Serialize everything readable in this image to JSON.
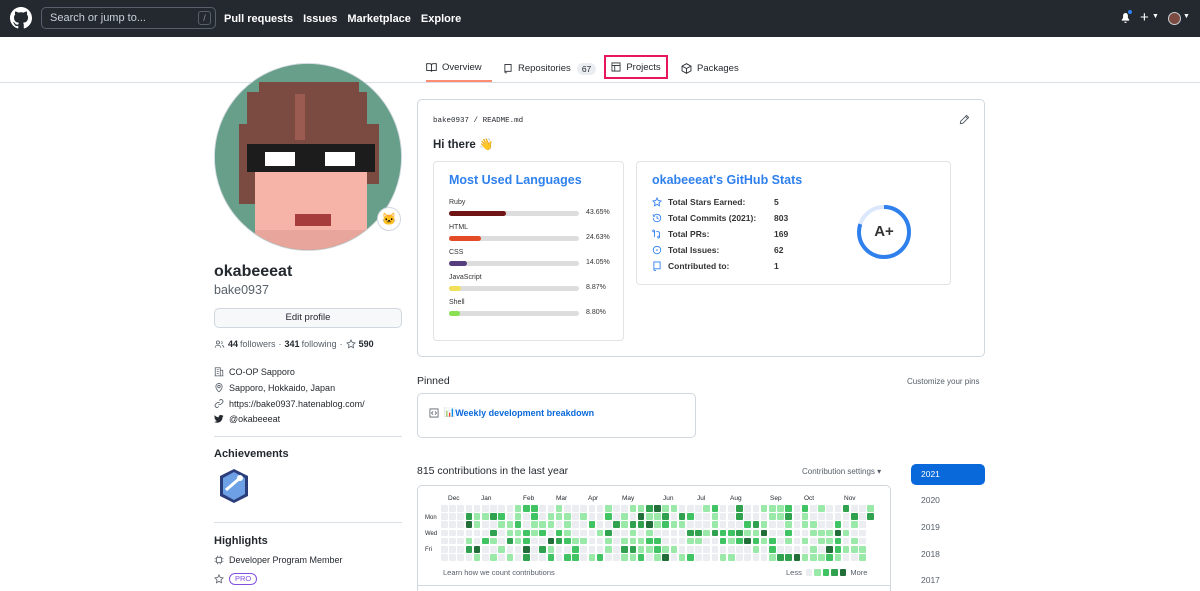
{
  "header": {
    "search_placeholder": "Search or jump to...",
    "slash_hint": "/",
    "nav": [
      "Pull requests",
      "Issues",
      "Marketplace",
      "Explore"
    ],
    "plus_label": "+"
  },
  "tabs": {
    "overview": "Overview",
    "repositories": "Repositories",
    "repositories_count": "67",
    "projects": "Projects",
    "packages": "Packages"
  },
  "profile": {
    "name": "okabeeeat",
    "login": "bake0937",
    "edit_label": "Edit profile",
    "followers_count": "44",
    "followers_label": "followers",
    "following_count": "341",
    "following_label": "following",
    "stars_count": "590",
    "company": "CO-OP Sapporo",
    "location": "Sapporo, Hokkaido, Japan",
    "website": "https://bake0937.hatenablog.com/",
    "twitter": "@okabeeeat",
    "achievements_title": "Achievements",
    "highlights_title": "Highlights",
    "highlight_1": "Developer Program Member",
    "pro_badge": "PRO"
  },
  "readme": {
    "path_user": "bake0937",
    "path_sep": "/",
    "path_file": "README.md",
    "greeting": "Hi there 👋",
    "languages_title": "Most Used Languages",
    "languages": [
      {
        "name": "Ruby",
        "percent": 43.65,
        "label": "43.65%",
        "color": "#701516"
      },
      {
        "name": "HTML",
        "percent": 24.63,
        "label": "24.63%",
        "color": "#e34c26"
      },
      {
        "name": "CSS",
        "percent": 14.05,
        "label": "14.05%",
        "color": "#563d7c"
      },
      {
        "name": "JavaScript",
        "percent": 8.87,
        "label": "8.87%",
        "color": "#f1e05a"
      },
      {
        "name": "Shell",
        "percent": 8.8,
        "label": "8.80%",
        "color": "#89e051"
      }
    ],
    "stats_title": "okabeeeat's GitHub Stats",
    "stats": [
      {
        "label": "Total Stars Earned:",
        "value": "5",
        "icon": "star-icon"
      },
      {
        "label": "Total Commits (2021):",
        "value": "803",
        "icon": "history-icon"
      },
      {
        "label": "Total PRs:",
        "value": "169",
        "icon": "pr-icon"
      },
      {
        "label": "Total Issues:",
        "value": "62",
        "icon": "issue-icon"
      },
      {
        "label": "Contributed to:",
        "value": "1",
        "icon": "repo-icon"
      }
    ],
    "grade": "A+",
    "grade_fraction": 0.8
  },
  "pinned": {
    "title": "Pinned",
    "customize": "Customize your pins",
    "item_emoji": "📊",
    "item_title": "Weekly development breakdown"
  },
  "contributions": {
    "title": "815 contributions in the last year",
    "settings": "Contribution settings ▾",
    "months": [
      "Dec",
      "Jan",
      "Feb",
      "Mar",
      "Apr",
      "May",
      "Jun",
      "Jul",
      "Aug",
      "Sep",
      "Oct",
      "Nov"
    ],
    "days": [
      "Mon",
      "Wed",
      "Fri"
    ],
    "learn": "Learn how we count contributions",
    "less": "Less",
    "more": "More",
    "colors": [
      "#ebedf0",
      "#9be9a8",
      "#40c463",
      "#30a14e",
      "#216e39"
    ]
  },
  "years": [
    "2021",
    "2020",
    "2019",
    "2018",
    "2017"
  ]
}
